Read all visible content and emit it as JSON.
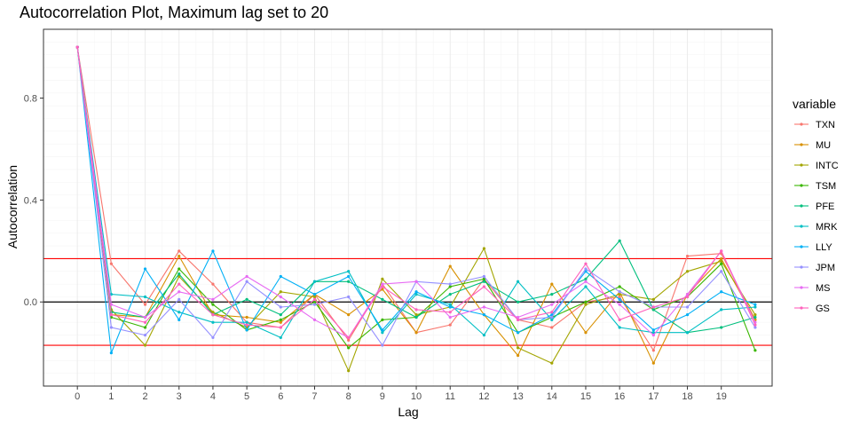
{
  "chart_data": {
    "type": "line",
    "title": "Autocorrelation Plot, Maximum lag set to 20",
    "xlabel": "Lag",
    "ylabel": "Autocorrelation",
    "x_ticks": [
      "0",
      "1",
      "2",
      "3",
      "4",
      "5",
      "6",
      "7",
      "8",
      "9",
      "10",
      "11",
      "12",
      "13",
      "14",
      "15",
      "16",
      "17",
      "18",
      "19"
    ],
    "y_ticks": [
      "0.0",
      "0.4",
      "0.8"
    ],
    "y_tick_values": [
      0.0,
      0.4,
      0.8
    ],
    "xlim": [
      -1,
      20.5
    ],
    "ylim": [
      -0.33,
      1.07
    ],
    "legend_title": "variable",
    "legend_position": "right",
    "grid": true,
    "x": [
      0,
      1,
      2,
      3,
      4,
      5,
      6,
      7,
      8,
      9,
      10,
      11,
      12,
      13,
      14,
      15,
      16,
      17,
      18,
      19,
      20
    ],
    "reference_lines": [
      {
        "y": 0.0,
        "color": "#000000"
      },
      {
        "y": 0.17,
        "color": "#FF0000"
      },
      {
        "y": -0.17,
        "color": "#FF0000"
      }
    ],
    "series": [
      {
        "name": "TXN",
        "color": "#F8766D",
        "values": [
          1.0,
          0.15,
          -0.01,
          0.2,
          0.07,
          -0.08,
          -0.1,
          0.03,
          -0.15,
          0.07,
          -0.12,
          -0.09,
          0.09,
          -0.07,
          -0.1,
          0.0,
          0.02,
          -0.19,
          0.18,
          0.19,
          -0.07
        ]
      },
      {
        "name": "MU",
        "color": "#D89000",
        "values": [
          1.0,
          -0.05,
          -0.06,
          0.18,
          -0.05,
          -0.06,
          -0.08,
          0.03,
          -0.05,
          0.05,
          -0.12,
          0.14,
          -0.05,
          -0.21,
          0.07,
          -0.12,
          0.04,
          -0.24,
          0.03,
          0.17,
          -0.07
        ]
      },
      {
        "name": "INTC",
        "color": "#A3A500",
        "values": [
          1.0,
          -0.03,
          -0.17,
          0.1,
          -0.04,
          -0.1,
          0.04,
          0.02,
          -0.27,
          0.09,
          -0.05,
          -0.02,
          0.21,
          -0.18,
          -0.24,
          -0.01,
          0.03,
          0.01,
          0.12,
          0.16,
          -0.05
        ]
      },
      {
        "name": "TSM",
        "color": "#39B600",
        "values": [
          1.0,
          -0.06,
          -0.1,
          0.13,
          -0.01,
          -0.11,
          -0.07,
          0.0,
          -0.18,
          -0.07,
          -0.06,
          0.06,
          0.09,
          -0.12,
          -0.06,
          0.0,
          0.06,
          -0.03,
          0.02,
          0.15,
          -0.19
        ]
      },
      {
        "name": "PFE",
        "color": "#00BF7D",
        "values": [
          1.0,
          -0.04,
          -0.06,
          0.11,
          -0.05,
          0.01,
          -0.05,
          0.08,
          0.08,
          0.01,
          -0.06,
          0.03,
          0.08,
          0.0,
          0.03,
          0.09,
          0.24,
          -0.03,
          -0.12,
          -0.1,
          -0.06
        ]
      },
      {
        "name": "MRK",
        "color": "#00BFC4",
        "values": [
          1.0,
          0.03,
          0.02,
          -0.04,
          -0.08,
          -0.08,
          -0.14,
          0.08,
          0.12,
          -0.12,
          0.03,
          -0.01,
          -0.13,
          0.08,
          -0.07,
          0.06,
          -0.1,
          -0.12,
          -0.12,
          -0.03,
          -0.02
        ]
      },
      {
        "name": "LLY",
        "color": "#00B0F6",
        "values": [
          1.0,
          -0.2,
          0.13,
          -0.07,
          0.2,
          -0.11,
          0.1,
          0.03,
          0.1,
          -0.11,
          0.04,
          -0.02,
          -0.05,
          -0.12,
          -0.05,
          0.12,
          0.01,
          -0.11,
          -0.05,
          0.04,
          -0.01
        ]
      },
      {
        "name": "JPM",
        "color": "#9590FF",
        "values": [
          1.0,
          -0.1,
          -0.13,
          0.01,
          -0.14,
          0.08,
          -0.02,
          -0.01,
          0.02,
          -0.17,
          0.08,
          0.07,
          0.1,
          -0.07,
          -0.06,
          0.13,
          0.04,
          -0.02,
          -0.02,
          0.12,
          -0.1
        ]
      },
      {
        "name": "MS",
        "color": "#E76BF3",
        "values": [
          1.0,
          -0.01,
          -0.06,
          0.04,
          0.01,
          0.1,
          0.02,
          -0.07,
          -0.14,
          0.07,
          0.08,
          -0.06,
          -0.02,
          -0.06,
          -0.01,
          0.08,
          -0.01,
          -0.13,
          0.03,
          0.2,
          -0.08
        ]
      },
      {
        "name": "GS",
        "color": "#FF62BC",
        "values": [
          1.0,
          -0.05,
          -0.08,
          0.07,
          -0.05,
          -0.09,
          -0.1,
          0.01,
          -0.14,
          0.06,
          -0.03,
          -0.04,
          0.06,
          -0.07,
          -0.04,
          0.15,
          -0.07,
          -0.02,
          0.02,
          0.2,
          -0.09
        ]
      }
    ]
  }
}
